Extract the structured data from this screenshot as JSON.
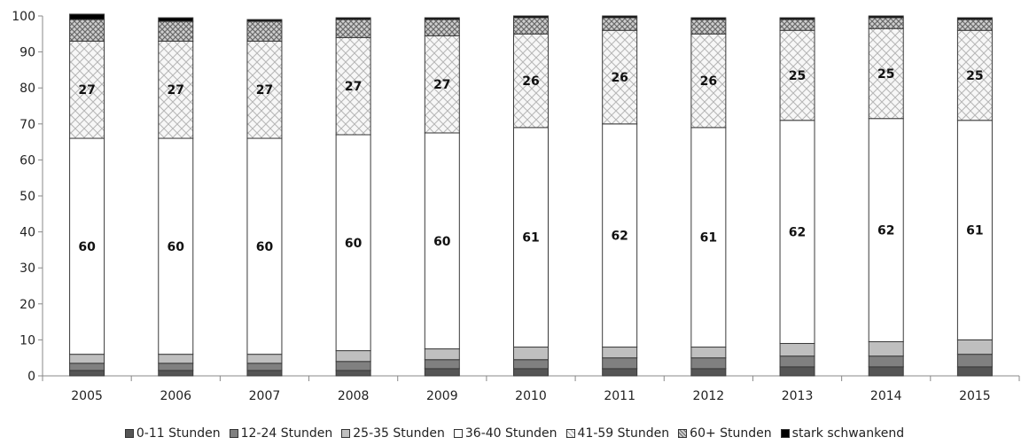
{
  "chart_data": {
    "type": "bar",
    "stacked": true,
    "categories": [
      "2005",
      "2006",
      "2007",
      "2008",
      "2009",
      "2010",
      "2011",
      "2012",
      "2013",
      "2014",
      "2015"
    ],
    "ylim": [
      0,
      100
    ],
    "yticks": [
      0,
      10,
      20,
      30,
      40,
      50,
      60,
      70,
      80,
      90,
      100
    ],
    "grid": false,
    "legend_position": "bottom",
    "series": [
      {
        "name": "0-11 Stunden",
        "values": [
          1.5,
          1.5,
          1.5,
          1.5,
          2,
          2,
          2,
          2,
          2.5,
          2.5,
          2.5
        ],
        "fill": "#555555",
        "pattern": "none"
      },
      {
        "name": "12-24 Stunden",
        "values": [
          2,
          2,
          2,
          2.5,
          2.5,
          2.5,
          3,
          3,
          3,
          3,
          3.5
        ],
        "fill": "#808080",
        "pattern": "none"
      },
      {
        "name": "25-35 Stunden",
        "values": [
          2.5,
          2.5,
          2.5,
          3,
          3,
          3.5,
          3,
          3,
          3.5,
          4,
          4
        ],
        "fill": "#bfbfbf",
        "pattern": "none"
      },
      {
        "name": "36-40 Stunden",
        "values": [
          60,
          60,
          60,
          60,
          60,
          61,
          62,
          61,
          62,
          62,
          61
        ],
        "fill": "#ffffff",
        "pattern": "none"
      },
      {
        "name": "41-59 Stunden",
        "values": [
          27,
          27,
          27,
          27,
          27,
          26,
          26,
          26,
          25,
          25,
          25
        ],
        "fill": "#f2f2f2",
        "pattern": "crosshatch-light"
      },
      {
        "name": "60+ Stunden",
        "values": [
          6,
          5.5,
          5.5,
          5,
          4.5,
          4.5,
          3.5,
          4,
          3,
          3,
          3
        ],
        "fill": "#b3b3b3",
        "pattern": "crosshatch-dark"
      },
      {
        "name": "stark schwankend",
        "values": [
          1.5,
          1,
          0.5,
          0.5,
          0.5,
          0.5,
          0.5,
          0.5,
          0.5,
          0.5,
          0.5
        ],
        "fill": "#000000",
        "pattern": "none"
      }
    ],
    "data_labels": [
      {
        "series": "36-40 Stunden",
        "values": [
          "60",
          "60",
          "60",
          "60",
          "60",
          "61",
          "62",
          "61",
          "62",
          "62",
          "61"
        ]
      },
      {
        "series": "41-59 Stunden",
        "values": [
          "27",
          "27",
          "27",
          "27",
          "27",
          "26",
          "26",
          "26",
          "25",
          "25",
          "25"
        ]
      }
    ]
  }
}
